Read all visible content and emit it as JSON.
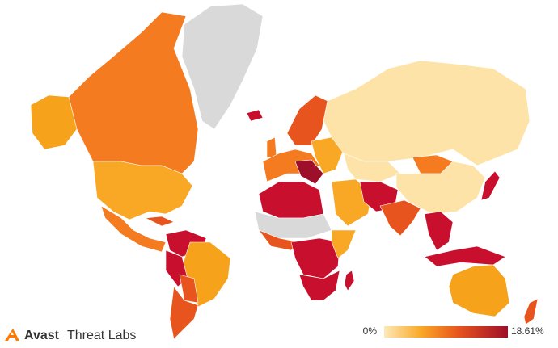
{
  "logo": {
    "brand": "Avast",
    "product": "Threat Labs"
  },
  "legend": {
    "min": {
      "value": 0,
      "label": "0%"
    },
    "max": {
      "value": 18.61,
      "label": "18.61%"
    }
  }
}
